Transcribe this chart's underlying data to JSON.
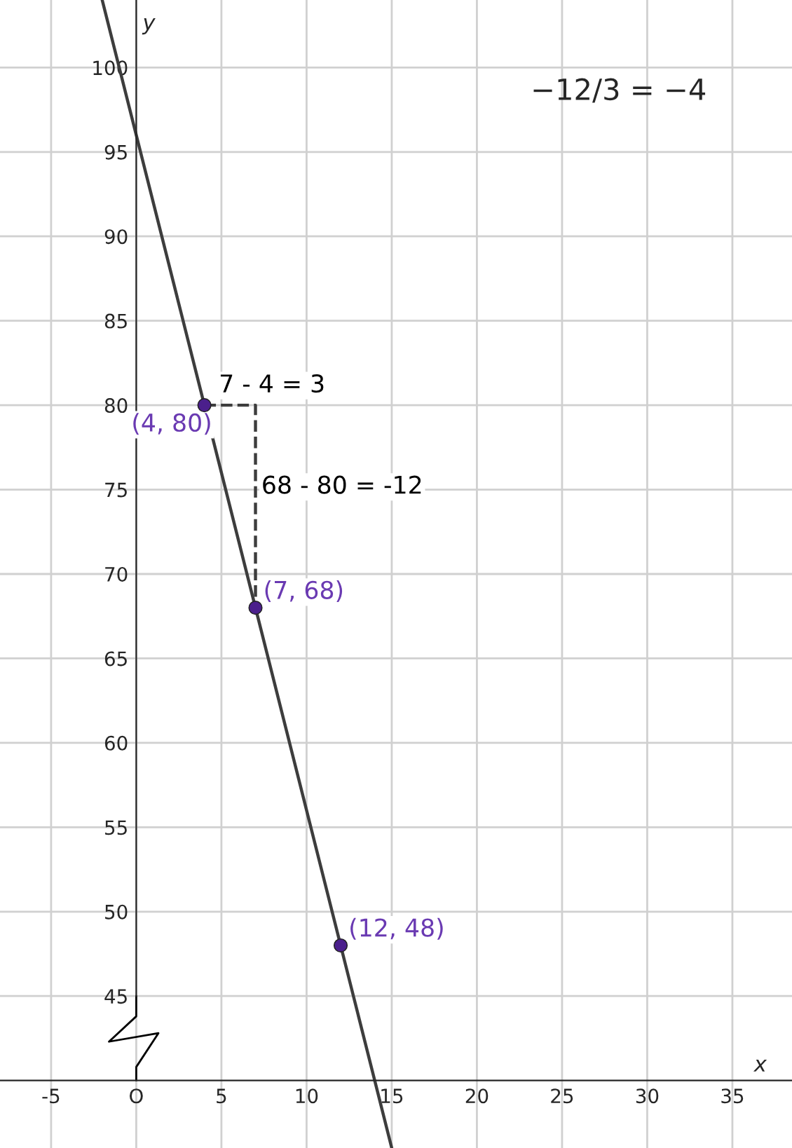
{
  "chart_data": {
    "type": "line",
    "xlabel": "x",
    "ylabel": "y",
    "xlim": [
      -8,
      38.5
    ],
    "ylim": [
      36,
      104
    ],
    "xticks": [
      -5,
      {
        "value": 0,
        "label": "O"
      },
      5,
      10,
      15,
      20,
      25,
      30,
      35
    ],
    "yticks": [
      45,
      50,
      55,
      60,
      65,
      70,
      75,
      80,
      85,
      90,
      95,
      100
    ],
    "grid": true,
    "series": [
      {
        "color": "#3d3d3d",
        "x": [
          -2,
          15
        ],
        "values": [
          104,
          36
        ],
        "line_style": "solid"
      },
      {
        "color": "#3d3d3d",
        "x": [
          4,
          7,
          7
        ],
        "values": [
          80,
          80,
          68
        ],
        "line_style": "dashed"
      },
      {
        "type": "scatter",
        "color": "#4b1f8c",
        "x": [
          4,
          7,
          12
        ],
        "values": [
          80,
          68,
          48
        ],
        "marker": "circle"
      }
    ],
    "annotations": [
      {
        "text": "(4, 80)",
        "x": 4,
        "y": 80
      },
      {
        "text": "(7, 68)",
        "x": 7,
        "y": 68
      },
      {
        "text": "(12, 48)",
        "x": 12,
        "y": 48
      },
      {
        "text": "7 - 4 = 3",
        "x": 4.5,
        "y": 80
      },
      {
        "text": "68 - 80 = -12",
        "x": 7,
        "y": 74
      },
      "−12/3 = −4"
    ]
  }
}
